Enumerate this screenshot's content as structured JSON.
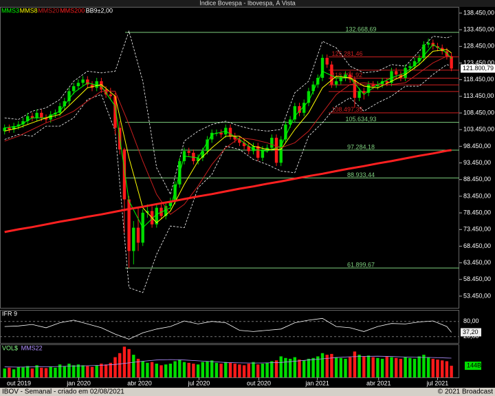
{
  "window_title": "Índice Bovespa - Ibovespa, À Vista",
  "footer": {
    "left": "IBOV - Semanal - criado em 02/08/2021",
    "right": "© 2021 Broadcast"
  },
  "chart_data": [
    {
      "type": "candlestick",
      "up_color": "#00dd00",
      "down_color": "#ff1a1a",
      "xlim": [
        -1,
        98.7
      ],
      "ylim": [
        49930,
        140310
      ],
      "yticks": [
        {
          "value": 53450,
          "label": "53.450,00"
        },
        {
          "value": 58450,
          "label": "58.450,00"
        },
        {
          "value": 63450,
          "label": "63.450,00"
        },
        {
          "value": 68450,
          "label": "68.450,00"
        },
        {
          "value": 73450,
          "label": "73.450,00"
        },
        {
          "value": 78450,
          "label": "78.450,00"
        },
        {
          "value": 83450,
          "label": "83.450,00"
        },
        {
          "value": 88450,
          "label": "88.450,00"
        },
        {
          "value": 93450,
          "label": "93.450,00"
        },
        {
          "value": 98450,
          "label": "98.450,00"
        },
        {
          "value": 103450,
          "label": "103.450,00"
        },
        {
          "value": 108450,
          "label": "108.450,00"
        },
        {
          "value": 113450,
          "label": "113.450,00"
        },
        {
          "value": 118450,
          "label": "118.450,00"
        },
        {
          "value": 123450,
          "label": "123.450,00"
        },
        {
          "value": 128450,
          "label": "128.450,00"
        },
        {
          "value": 133450,
          "label": "133.450,00"
        },
        {
          "value": 138450,
          "label": "138.450,00"
        }
      ],
      "xticks": [
        {
          "value": 3.1,
          "label": "out 2019"
        },
        {
          "value": 16.1,
          "label": "jan 2020"
        },
        {
          "value": 29.3,
          "label": "abr 2020"
        },
        {
          "value": 42.2,
          "label": "jul 2020"
        },
        {
          "value": 55.2,
          "label": "out 2020"
        },
        {
          "value": 67.9,
          "label": "jan 2021"
        },
        {
          "value": 81.2,
          "label": "abr 2021"
        },
        {
          "value": 94.0,
          "label": "jul 2021"
        }
      ],
      "open": [
        103000,
        104000,
        103500,
        104500,
        105000,
        106000,
        107500,
        107000,
        108500,
        107000,
        106500,
        108000,
        108500,
        110500,
        112000,
        115000,
        116500,
        117500,
        118500,
        117000,
        116000,
        118000,
        115500,
        114000,
        113500,
        104000,
        97500,
        82500,
        67000,
        74000,
        69500,
        78500,
        79000,
        75000,
        80000,
        77500,
        80500,
        82000,
        87000,
        94000,
        97000,
        96500,
        94000,
        95000,
        97000,
        100500,
        102500,
        102500,
        102000,
        104000,
        101500,
        100500,
        99500,
        98500,
        97000,
        98500,
        95000,
        97500,
        98000,
        101000,
        93500,
        100500,
        105000,
        106500,
        110500,
        108500,
        111500,
        115000,
        117000,
        119000,
        125000,
        123000,
        117000,
        118000,
        119000,
        120000,
        118500,
        113000,
        115000,
        114500,
        117000,
        116500,
        117000,
        118000,
        117500,
        121000,
        120000,
        119000,
        122000,
        122500,
        124000,
        125000,
        129000,
        129500,
        128500,
        128000,
        127000,
        125500
      ],
      "high": [
        105000,
        105000,
        105500,
        106000,
        107000,
        108500,
        108500,
        109500,
        109500,
        108000,
        109000,
        109500,
        111500,
        113000,
        116000,
        117500,
        118500,
        119500,
        119500,
        118000,
        119000,
        119000,
        116500,
        116000,
        114500,
        106000,
        98000,
        83500,
        76000,
        80000,
        79500,
        81000,
        80500,
        81000,
        81000,
        81500,
        83000,
        88000,
        95000,
        98000,
        98000,
        97500,
        96000,
        98000,
        101500,
        103500,
        103500,
        103500,
        105000,
        105000,
        102500,
        101500,
        100500,
        99500,
        99500,
        99500,
        98500,
        99000,
        102000,
        102000,
        101500,
        106000,
        107500,
        111500,
        111500,
        112500,
        116000,
        118000,
        120000,
        126000,
        126000,
        124000,
        119000,
        120000,
        121000,
        121000,
        119500,
        116000,
        116000,
        118000,
        118000,
        118000,
        119000,
        119000,
        122000,
        122000,
        121000,
        123000,
        123500,
        125000,
        126000,
        130000,
        130800,
        130500,
        129500,
        129000,
        128000,
        126500
      ],
      "low": [
        102000,
        102500,
        102500,
        103500,
        104000,
        105000,
        106000,
        106000,
        106000,
        105500,
        105500,
        107000,
        107500,
        109500,
        111000,
        114000,
        115500,
        116500,
        116000,
        115000,
        115000,
        114500,
        113000,
        112500,
        102000,
        96000,
        72500,
        61900,
        63000,
        67000,
        68500,
        77000,
        74000,
        74000,
        76500,
        76500,
        79500,
        81000,
        86000,
        93000,
        95500,
        93000,
        93000,
        94000,
        96000,
        99500,
        101500,
        101000,
        101000,
        100500,
        99500,
        98500,
        97500,
        96000,
        96000,
        94000,
        94000,
        96500,
        97000,
        92500,
        92500,
        99500,
        104000,
        105500,
        107500,
        107500,
        110500,
        114000,
        116000,
        118000,
        122000,
        116000,
        116000,
        117000,
        118000,
        117500,
        110000,
        112000,
        112500,
        113500,
        115500,
        115500,
        116000,
        116500,
        116500,
        119000,
        118000,
        118000,
        121000,
        121500,
        123000,
        124000,
        128000,
        127500,
        127000,
        126000,
        124500,
        121000
      ],
      "close": [
        104000,
        103500,
        104500,
        105000,
        106000,
        107500,
        107000,
        108500,
        107000,
        106500,
        108000,
        108500,
        110500,
        112000,
        115000,
        116500,
        117500,
        118500,
        117000,
        116000,
        118000,
        115500,
        114000,
        113500,
        104000,
        97500,
        82500,
        67000,
        74000,
        69500,
        78500,
        79000,
        75000,
        80000,
        77500,
        80500,
        82000,
        87000,
        94000,
        97000,
        96500,
        94000,
        95000,
        97000,
        100500,
        102500,
        102500,
        102000,
        104000,
        101500,
        100500,
        99500,
        98500,
        97000,
        98500,
        95000,
        97500,
        98000,
        101000,
        93500,
        100500,
        105000,
        106500,
        110500,
        108500,
        111500,
        115000,
        117000,
        119000,
        125000,
        123000,
        117000,
        118000,
        119000,
        120000,
        118500,
        113000,
        115000,
        114500,
        117000,
        116500,
        117000,
        118000,
        117500,
        121000,
        120000,
        119000,
        122000,
        122500,
        124000,
        125000,
        129000,
        129500,
        128500,
        128000,
        127000,
        125500,
        121800.79
      ],
      "line_x": [
        0,
        3,
        6,
        9,
        12,
        15,
        18,
        21,
        24,
        27,
        30,
        33,
        36,
        39,
        42,
        45,
        48,
        51,
        54,
        57,
        60,
        63,
        66,
        69,
        72,
        75,
        78,
        81,
        84,
        87,
        90,
        93,
        96,
        97
      ],
      "series": [
        {
          "name": "MMS3",
          "color": "#00ff00",
          "values": [
            104000,
            104500,
            107000,
            107000,
            109000,
            114500,
            117500,
            116500,
            110500,
            82000,
            74000,
            78000,
            80000,
            95500,
            95000,
            102000,
            103000,
            100500,
            97500,
            97000,
            98500,
            107500,
            112000,
            121000,
            119000,
            119000,
            114000,
            117000,
            119000,
            120500,
            124000,
            129000,
            126500,
            124800
          ]
        },
        {
          "name": "MMS8",
          "color": "#ffff00",
          "values": [
            103000,
            104000,
            105500,
            107000,
            108000,
            112000,
            116000,
            117000,
            113500,
            95000,
            80000,
            75500,
            79000,
            87000,
            94000,
            98000,
            101500,
            101500,
            98500,
            97500,
            97500,
            103500,
            108500,
            116000,
            119500,
            119000,
            116500,
            116000,
            118000,
            120000,
            123000,
            127000,
            127500,
            126500
          ]
        },
        {
          "name": "MMS20",
          "color": "#c81e1e",
          "values": [
            100000,
            101500,
            103500,
            105500,
            107000,
            109000,
            112000,
            115000,
            115000,
            105000,
            94000,
            84000,
            78000,
            81000,
            86500,
            93000,
            98000,
            101000,
            100500,
            99500,
            98000,
            99500,
            103000,
            108500,
            114000,
            117000,
            117500,
            117000,
            117000,
            117500,
            120500,
            123500,
            125500,
            125500
          ]
        },
        {
          "name": "MMS200",
          "color": "#ff2020",
          "width": 3,
          "values": [
            72700,
            73500,
            74200,
            75000,
            75800,
            76500,
            77300,
            78000,
            78800,
            79600,
            80300,
            81100,
            81800,
            82600,
            83400,
            84100,
            84900,
            85700,
            86400,
            87200,
            87900,
            88700,
            89500,
            90200,
            91000,
            91800,
            92500,
            93300,
            94000,
            94800,
            95600,
            96300,
            97100,
            97300
          ]
        }
      ],
      "bands": {
        "name": "BB9±2,00",
        "color": "#ffffff",
        "upper": [
          107000,
          106500,
          109000,
          110000,
          112500,
          118000,
          121000,
          120500,
          121000,
          133000,
          118000,
          92000,
          84000,
          100000,
          103000,
          105000,
          106000,
          104500,
          103500,
          103000,
          103500,
          114500,
          118000,
          130000,
          128000,
          122500,
          120500,
          121000,
          123000,
          122500,
          127000,
          131500,
          131000,
          131500
        ],
        "lower": [
          100500,
          102000,
          101500,
          104500,
          104500,
          107000,
          112500,
          114000,
          103000,
          56000,
          54500,
          66000,
          74500,
          74000,
          86000,
          90000,
          98500,
          97500,
          94500,
          93000,
          91000,
          90500,
          101500,
          105500,
          110500,
          113000,
          109000,
          111500,
          113500,
          116500,
          116500,
          120000,
          123000,
          122500
        ]
      },
      "levels": {
        "color": "#7fd07f",
        "items": [
          {
            "value": 132668.69,
            "label": "132.668,69"
          },
          {
            "value": 105634.93,
            "label": "105.634,93"
          },
          {
            "value": 97284.18,
            "label": "97.284,18"
          },
          {
            "value": 88933.44,
            "label": "88.933,44"
          },
          {
            "value": 61899.67,
            "label": "61.899,67"
          }
        ]
      },
      "fibonacci_levels": {
        "color": "#d02020",
        "items": [
          {
            "value": 125281.46,
            "label": "125.281,46"
          },
          {
            "value": 121320
          },
          {
            "value": 118891.92,
            "label": "118.891,92"
          },
          {
            "value": 116889
          },
          {
            "value": 114888
          },
          {
            "value": 108497.35,
            "label": "108.497,35"
          }
        ]
      },
      "last": {
        "value": 121800.79,
        "label": "121.800,79"
      }
    },
    {
      "type": "line",
      "title": "IFR 9",
      "color": "#ffffff",
      "ylim": [
        -5,
        120
      ],
      "yticks": [
        {
          "value": 80,
          "label": "80,00"
        },
        {
          "value": 20,
          "label": "20,00"
        }
      ],
      "values": [
        60,
        62,
        68,
        55,
        75,
        85,
        70,
        55,
        30,
        10,
        35,
        50,
        60,
        82,
        70,
        80,
        75,
        45,
        40,
        45,
        50,
        75,
        85,
        92,
        60,
        55,
        40,
        60,
        72,
        70,
        78,
        82,
        60,
        37.2
      ],
      "value_labels": [
        null,
        null,
        null,
        null,
        null,
        null,
        null,
        null,
        null,
        null,
        null,
        null,
        null,
        null,
        null,
        null,
        null,
        null,
        null,
        null,
        null,
        null,
        null,
        null,
        null,
        null,
        null,
        null,
        null,
        null,
        null,
        null,
        null,
        "37,20"
      ]
    },
    {
      "type": "bar",
      "title": "VOL$",
      "ylim": [
        0,
        400
      ],
      "values": [
        110,
        120,
        100,
        130,
        125,
        140,
        110,
        150,
        120,
        115,
        130,
        120,
        160,
        140,
        170,
        150,
        160,
        150,
        140,
        130,
        150,
        170,
        160,
        180,
        250,
        300,
        380,
        350,
        280,
        230,
        200,
        180,
        190,
        170,
        150,
        160,
        170,
        200,
        220,
        190,
        180,
        170,
        160,
        190,
        200,
        210,
        180,
        170,
        190,
        180,
        170,
        160,
        150,
        170,
        190,
        160,
        170,
        180,
        200,
        210,
        260,
        240,
        230,
        250,
        220,
        210,
        230,
        240,
        260,
        300,
        280,
        290,
        250,
        240,
        230,
        250,
        320,
        280,
        260,
        270,
        250,
        240,
        230,
        260,
        250,
        240,
        230,
        250,
        240,
        230,
        260,
        280,
        250,
        230,
        220,
        210,
        200,
        144
      ],
      "value_labels": [
        null,
        null,
        null,
        null,
        null,
        null,
        null,
        null,
        null,
        null,
        null,
        null,
        null,
        null,
        null,
        null,
        null,
        null,
        null,
        null,
        null,
        null,
        null,
        null,
        null,
        null,
        null,
        null,
        null,
        null,
        null,
        null,
        null,
        null,
        null,
        null,
        null,
        null,
        null,
        null,
        null,
        null,
        null,
        null,
        null,
        null,
        null,
        null,
        null,
        null,
        null,
        null,
        null,
        null,
        null,
        null,
        null,
        null,
        null,
        null,
        null,
        null,
        null,
        null,
        null,
        null,
        null,
        null,
        null,
        null,
        null,
        null,
        null,
        null,
        null,
        null,
        null,
        null,
        null,
        null,
        null,
        null,
        null,
        null,
        null,
        null,
        null,
        null,
        null,
        null,
        null,
        null,
        null,
        null,
        null,
        null,
        null,
        "144B"
      ],
      "series": [
        {
          "name": "MMS22",
          "color": "#b090ff",
          "values": [
            130,
            128,
            130,
            132,
            135,
            140,
            145,
            150,
            160,
            180,
            200,
            215,
            220,
            215,
            205,
            195,
            185,
            180,
            178,
            180,
            185,
            200,
            215,
            230,
            245,
            255,
            260,
            262,
            258,
            252,
            248,
            246,
            240,
            238
          ]
        }
      ]
    }
  ]
}
